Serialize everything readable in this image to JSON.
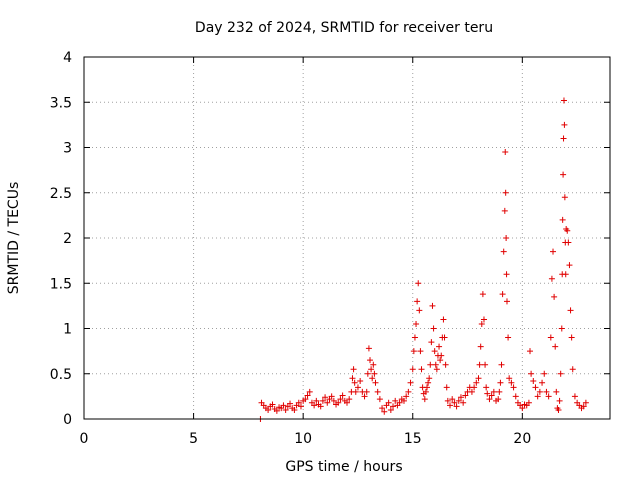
{
  "chart_data": {
    "type": "scatter",
    "title": "Day 232 of 2024, SRMTID for receiver teru",
    "xlabel": "GPS time / hours",
    "ylabel": "SRMTID / TECUs",
    "xlim": [
      0,
      24
    ],
    "ylim": [
      0,
      4
    ],
    "xticks": [
      0,
      5,
      10,
      15,
      20
    ],
    "yticks": [
      0,
      0.5,
      1,
      1.5,
      2,
      2.5,
      3,
      3.5,
      4
    ],
    "xtick_labels": [
      "0",
      "5",
      "10",
      "15",
      "20"
    ],
    "ytick_labels": [
      "0",
      "0.5",
      "1",
      "1.5",
      "2",
      "2.5",
      "3",
      "3.5",
      "4"
    ],
    "grid": true,
    "marker": "+",
    "color": "#e00000",
    "series": [
      {
        "name": "SRMTID",
        "x": [
          8.05,
          8.1,
          8.2,
          8.3,
          8.4,
          8.5,
          8.6,
          8.7,
          8.8,
          8.9,
          9.0,
          9.1,
          9.2,
          9.3,
          9.4,
          9.5,
          9.6,
          9.7,
          9.8,
          9.9,
          10.0,
          10.1,
          10.2,
          10.3,
          10.4,
          10.5,
          10.6,
          10.7,
          10.8,
          10.9,
          11.0,
          11.1,
          11.2,
          11.3,
          11.4,
          11.5,
          11.6,
          11.7,
          11.8,
          11.9,
          12.0,
          12.1,
          12.2,
          12.25,
          12.3,
          12.35,
          12.4,
          12.5,
          12.6,
          12.7,
          12.8,
          12.9,
          12.95,
          13.0,
          13.05,
          13.1,
          13.15,
          13.2,
          13.25,
          13.3,
          13.4,
          13.5,
          13.6,
          13.7,
          13.8,
          13.9,
          14.0,
          14.1,
          14.2,
          14.3,
          14.4,
          14.5,
          14.6,
          14.7,
          14.8,
          14.9,
          15.0,
          15.05,
          15.1,
          15.15,
          15.2,
          15.25,
          15.3,
          15.35,
          15.4,
          15.45,
          15.5,
          15.55,
          15.6,
          15.65,
          15.7,
          15.75,
          15.8,
          15.85,
          15.9,
          15.95,
          16.0,
          16.05,
          16.1,
          16.15,
          16.2,
          16.25,
          16.3,
          16.35,
          16.4,
          16.45,
          16.5,
          16.55,
          16.6,
          16.7,
          16.8,
          16.9,
          17.0,
          17.1,
          17.2,
          17.3,
          17.4,
          17.5,
          17.6,
          17.7,
          17.8,
          17.9,
          18.0,
          18.05,
          18.1,
          18.15,
          18.2,
          18.25,
          18.3,
          18.35,
          18.4,
          18.5,
          18.6,
          18.7,
          18.8,
          18.9,
          18.95,
          19.0,
          19.05,
          19.1,
          19.15,
          19.2,
          19.22,
          19.24,
          19.26,
          19.28,
          19.3,
          19.35,
          19.4,
          19.5,
          19.6,
          19.7,
          19.8,
          19.9,
          20.0,
          20.1,
          20.2,
          20.3,
          20.35,
          20.4,
          20.5,
          20.6,
          20.7,
          20.8,
          20.9,
          21.0,
          21.1,
          21.2,
          21.3,
          21.35,
          21.4,
          21.45,
          21.5,
          21.55,
          21.6,
          21.65,
          21.7,
          21.75,
          21.8,
          21.82,
          21.84,
          21.86,
          21.88,
          21.9,
          21.92,
          21.94,
          21.96,
          21.98,
          22.0,
          22.05,
          22.1,
          22.15,
          22.2,
          22.25,
          22.3,
          22.4,
          22.5,
          22.6,
          22.7,
          22.8,
          22.9
        ],
        "y": [
          0.0,
          0.18,
          0.15,
          0.12,
          0.1,
          0.14,
          0.16,
          0.11,
          0.09,
          0.13,
          0.12,
          0.15,
          0.1,
          0.14,
          0.17,
          0.12,
          0.1,
          0.15,
          0.18,
          0.14,
          0.2,
          0.22,
          0.26,
          0.3,
          0.18,
          0.15,
          0.2,
          0.16,
          0.14,
          0.2,
          0.24,
          0.18,
          0.22,
          0.25,
          0.2,
          0.16,
          0.18,
          0.22,
          0.26,
          0.2,
          0.18,
          0.22,
          0.3,
          0.45,
          0.55,
          0.4,
          0.3,
          0.35,
          0.42,
          0.3,
          0.25,
          0.3,
          0.5,
          0.78,
          0.65,
          0.55,
          0.45,
          0.6,
          0.5,
          0.4,
          0.3,
          0.22,
          0.12,
          0.08,
          0.15,
          0.18,
          0.1,
          0.14,
          0.2,
          0.15,
          0.18,
          0.22,
          0.2,
          0.25,
          0.3,
          0.4,
          0.55,
          0.75,
          0.9,
          1.05,
          1.3,
          1.5,
          1.2,
          0.75,
          0.55,
          0.35,
          0.28,
          0.22,
          0.3,
          0.35,
          0.4,
          0.45,
          0.6,
          0.85,
          1.25,
          1.0,
          0.75,
          0.6,
          0.55,
          0.7,
          0.8,
          0.65,
          0.7,
          0.9,
          1.1,
          0.9,
          0.6,
          0.35,
          0.2,
          0.15,
          0.22,
          0.18,
          0.14,
          0.2,
          0.24,
          0.18,
          0.26,
          0.3,
          0.35,
          0.3,
          0.35,
          0.4,
          0.45,
          0.6,
          0.8,
          1.05,
          1.38,
          1.1,
          0.6,
          0.35,
          0.28,
          0.22,
          0.26,
          0.3,
          0.2,
          0.22,
          0.3,
          0.4,
          0.6,
          1.38,
          1.85,
          2.3,
          2.95,
          2.5,
          2.0,
          1.6,
          1.3,
          0.9,
          0.45,
          0.4,
          0.35,
          0.25,
          0.18,
          0.15,
          0.12,
          0.16,
          0.15,
          0.18,
          0.75,
          0.5,
          0.42,
          0.35,
          0.25,
          0.3,
          0.4,
          0.5,
          0.3,
          0.25,
          0.9,
          1.55,
          1.85,
          1.35,
          0.8,
          0.3,
          0.12,
          0.1,
          0.2,
          0.5,
          1.0,
          1.6,
          2.2,
          2.7,
          3.1,
          3.52,
          3.25,
          2.45,
          1.95,
          1.6,
          2.1,
          2.08,
          1.95,
          1.7,
          1.2,
          0.9,
          0.55,
          0.25,
          0.18,
          0.15,
          0.12,
          0.14,
          0.18
        ]
      }
    ]
  }
}
